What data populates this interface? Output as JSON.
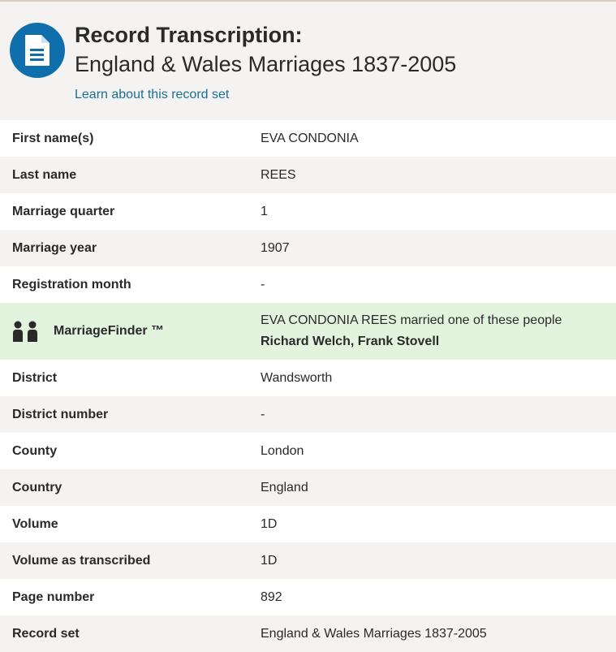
{
  "header": {
    "title": "Record Transcription:",
    "subtitle": "England & Wales Marriages 1837-2005",
    "learn_link": "Learn about this record set",
    "icon": "document-icon"
  },
  "rows_before": [
    {
      "label": "First name(s)",
      "value": "EVA CONDONIA"
    },
    {
      "label": "Last name",
      "value": "REES"
    },
    {
      "label": "Marriage quarter",
      "value": "1"
    },
    {
      "label": "Marriage year",
      "value": "1907"
    },
    {
      "label": "Registration month",
      "value": "-"
    }
  ],
  "marriage_finder": {
    "label": "MarriageFinder ™",
    "text": "EVA CONDONIA REES married one of these people",
    "names": "Richard Welch, Frank Stovell",
    "icon": "people-icon",
    "bg": "#e3f4de"
  },
  "rows_after": [
    {
      "label": "District",
      "value": "Wandsworth"
    },
    {
      "label": "District number",
      "value": "-"
    },
    {
      "label": "County",
      "value": "London"
    },
    {
      "label": "Country",
      "value": "England"
    },
    {
      "label": "Volume",
      "value": "1D"
    },
    {
      "label": "Volume as transcribed",
      "value": "1D"
    },
    {
      "label": "Page number",
      "value": "892"
    },
    {
      "label": "Record set",
      "value": "England & Wales Marriages 1837-2005"
    }
  ]
}
